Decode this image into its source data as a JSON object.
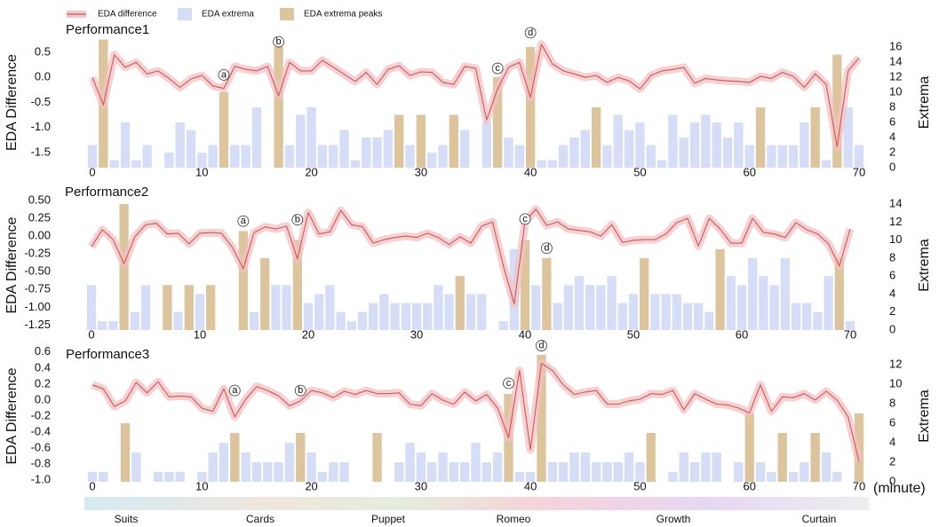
{
  "chart_data": [
    {
      "type": "combo",
      "title": "Performance1",
      "ylabel": "EDA Difference",
      "y2label": "Extrema",
      "x": [
        0,
        1,
        2,
        3,
        4,
        5,
        6,
        7,
        8,
        9,
        10,
        11,
        12,
        13,
        14,
        15,
        16,
        17,
        18,
        19,
        20,
        21,
        22,
        23,
        24,
        25,
        26,
        27,
        28,
        29,
        30,
        31,
        32,
        33,
        34,
        35,
        36,
        37,
        38,
        39,
        40,
        41,
        42,
        43,
        44,
        45,
        46,
        47,
        48,
        49,
        50,
        51,
        52,
        53,
        54,
        55,
        56,
        57,
        58,
        59,
        60,
        61,
        62,
        63,
        64,
        65,
        66,
        67,
        68,
        69,
        70
      ],
      "xlim": [
        0,
        70
      ],
      "xticks": [
        0,
        10,
        20,
        30,
        40,
        50,
        60,
        70
      ],
      "ylim": [
        -1.8,
        0.8
      ],
      "yticks": [
        -1.5,
        {
          "value": -1,
          "label": "-1.0"
        },
        -0.5,
        {
          "value": 0,
          "label": "0.0"
        },
        0.5
      ],
      "y2lim": [
        0,
        17.3
      ],
      "y2ticks": [
        0,
        2,
        4,
        6,
        8,
        10,
        12,
        14,
        16
      ],
      "series": [
        {
          "name": "EDA difference",
          "type": "line",
          "color": "#d9534f",
          "values": [
            0.0,
            -0.55,
            0.45,
            0.2,
            0.3,
            0.07,
            0.13,
            -0.02,
            -0.2,
            -0.03,
            0.04,
            -0.17,
            -0.22,
            0.22,
            0.16,
            0.13,
            0.22,
            -0.37,
            0.3,
            0.13,
            0.13,
            0.34,
            0.2,
            0.06,
            -0.08,
            0.1,
            -0.14,
            0.16,
            0.23,
            0.04,
            0.11,
            0.1,
            -0.1,
            -0.14,
            0.22,
            0.18,
            -0.85,
            -0.23,
            0.2,
            0.3,
            -0.4,
            0.66,
            0.27,
            0.13,
            0.07,
            0.0,
            0.04,
            -0.1,
            0.0,
            -0.07,
            -0.23,
            0.04,
            0.13,
            0.16,
            0.2,
            -0.12,
            -0.02,
            -0.05,
            -0.07,
            -0.08,
            -0.1,
            0.02,
            -0.02,
            0.1,
            0.02,
            -0.2,
            0.07,
            -0.14,
            -1.38,
            0.13,
            0.39
          ]
        },
        {
          "name": "EDA extrema",
          "type": "bar",
          "axis": "y2",
          "color": "#d5ddf7",
          "values": [
            3,
            null,
            1,
            6,
            1,
            3,
            null,
            2,
            6,
            5,
            2,
            3,
            null,
            3,
            3,
            8,
            null,
            null,
            3,
            7,
            8,
            3,
            3,
            5,
            1,
            4,
            4,
            5,
            null,
            3,
            null,
            2,
            3,
            null,
            5,
            null,
            6,
            null,
            4,
            3,
            null,
            1,
            1,
            3,
            4,
            5,
            null,
            3,
            7,
            5,
            6,
            3,
            1,
            7,
            4,
            6,
            7,
            6,
            4,
            6,
            3,
            null,
            3,
            3,
            3,
            6,
            null,
            1,
            null,
            8,
            3
          ]
        },
        {
          "name": "EDA extrema peaks",
          "type": "bar",
          "axis": "y2",
          "color": "#dcc49c",
          "values": [
            null,
            17,
            null,
            null,
            null,
            null,
            null,
            null,
            null,
            null,
            null,
            null,
            10,
            null,
            null,
            null,
            null,
            16,
            null,
            null,
            null,
            null,
            null,
            null,
            null,
            null,
            null,
            null,
            7,
            null,
            7,
            null,
            null,
            7,
            null,
            null,
            null,
            12,
            null,
            null,
            16,
            null,
            null,
            null,
            null,
            null,
            8,
            null,
            null,
            null,
            null,
            null,
            null,
            null,
            null,
            null,
            null,
            null,
            null,
            null,
            null,
            8,
            null,
            null,
            null,
            null,
            8,
            null,
            15,
            null,
            null
          ]
        }
      ],
      "annotations": [
        {
          "text": "a",
          "x": 12,
          "y": 0.05
        },
        {
          "text": "b",
          "x": 17,
          "y": 0.71
        },
        {
          "text": "c",
          "x": 37,
          "y": 0.18
        },
        {
          "text": "d",
          "x": 40,
          "y": 0.89
        }
      ]
    },
    {
      "type": "combo",
      "title": "Performance2",
      "ylabel": "EDA Difference",
      "y2label": "Extrema",
      "x": [
        0,
        1,
        2,
        3,
        4,
        5,
        6,
        7,
        8,
        9,
        10,
        11,
        12,
        13,
        14,
        15,
        16,
        17,
        18,
        19,
        20,
        21,
        22,
        23,
        24,
        25,
        26,
        27,
        28,
        29,
        30,
        31,
        32,
        33,
        34,
        35,
        36,
        37,
        38,
        39,
        40,
        41,
        42,
        43,
        44,
        45,
        46,
        47,
        48,
        49,
        50,
        51,
        52,
        53,
        54,
        55,
        56,
        57,
        58,
        59,
        60,
        61,
        62,
        63,
        64,
        65,
        66,
        67,
        68,
        69,
        70
      ],
      "xlim": [
        0,
        70
      ],
      "xticks": [
        0,
        10,
        20,
        30,
        40,
        50,
        60,
        70
      ],
      "ylim": [
        -1.32,
        0.5
      ],
      "yticks": [
        -1.25,
        {
          "value": -1,
          "label": "-1.00"
        },
        -0.75,
        {
          "value": -0.5,
          "label": "-0.50"
        },
        -0.25,
        {
          "value": 0,
          "label": "0.00"
        },
        0.25,
        {
          "value": 0.5,
          "label": "0.50"
        }
      ],
      "y2lim": [
        0,
        14.4
      ],
      "y2ticks": [
        0,
        2,
        4,
        6,
        8,
        10,
        12,
        14
      ],
      "series": [
        {
          "type": "line",
          "color": "#d9534f",
          "values": [
            -0.15,
            0.09,
            -0.05,
            -0.39,
            -0.01,
            0.16,
            0.18,
            0.03,
            0.04,
            -0.11,
            0.04,
            0.05,
            0.04,
            -0.16,
            -0.46,
            0.05,
            0.13,
            0.1,
            0.14,
            -0.32,
            0.33,
            0.03,
            0.06,
            0.36,
            0.16,
            0.13,
            -0.1,
            -0.05,
            -0.02,
            0.0,
            -0.02,
            0.04,
            -0.02,
            -0.12,
            -0.01,
            -0.1,
            0.14,
            0.2,
            -0.42,
            -0.95,
            0.2,
            0.38,
            0.15,
            0.2,
            0.1,
            0.08,
            0.06,
            0.0,
            0.16,
            -0.09,
            -0.06,
            -0.05,
            -0.05,
            0.03,
            0.19,
            0.25,
            -0.14,
            0.25,
            0.1,
            -0.1,
            -0.1,
            0.25,
            0.05,
            0.03,
            -0.02,
            0.19,
            0.09,
            0.03,
            -0.11,
            -0.42,
            0.1
          ]
        },
        {
          "type": "bar",
          "axis": "y2",
          "color": "#d5ddf7",
          "values": [
            5,
            1,
            1,
            null,
            2,
            5,
            null,
            null,
            2,
            null,
            4,
            null,
            null,
            null,
            null,
            2,
            null,
            5,
            5,
            null,
            3,
            4,
            5,
            2,
            1,
            2,
            3,
            4,
            3,
            3,
            3,
            3,
            5,
            4,
            null,
            4,
            4,
            null,
            1,
            9,
            null,
            5,
            null,
            3,
            5,
            6,
            5,
            5,
            6,
            3,
            4,
            null,
            4,
            4,
            4,
            3,
            3,
            2,
            null,
            6,
            5,
            8,
            6,
            5,
            8,
            3,
            3,
            2,
            6,
            null,
            1
          ]
        },
        {
          "type": "bar",
          "axis": "y2",
          "color": "#dcc49c",
          "values": [
            null,
            null,
            null,
            14,
            null,
            null,
            null,
            5,
            null,
            5,
            null,
            5,
            null,
            null,
            11,
            null,
            8,
            null,
            null,
            10,
            null,
            null,
            null,
            null,
            null,
            null,
            null,
            null,
            null,
            null,
            null,
            null,
            null,
            null,
            6,
            null,
            null,
            null,
            null,
            null,
            10,
            null,
            8,
            null,
            null,
            null,
            null,
            null,
            null,
            null,
            null,
            8,
            null,
            null,
            null,
            null,
            null,
            null,
            9,
            null,
            null,
            null,
            null,
            null,
            null,
            null,
            null,
            null,
            null,
            8,
            null
          ]
        }
      ],
      "annotations": [
        {
          "text": "a",
          "x": 14,
          "y": 0.21
        },
        {
          "text": "b",
          "x": 19,
          "y": 0.23
        },
        {
          "text": "c",
          "x": 40,
          "y": 0.24
        },
        {
          "text": "d",
          "x": 42,
          "y": -0.17
        }
      ]
    },
    {
      "type": "combo",
      "title": "Performance3",
      "ylabel": "EDA Difference",
      "y2label": "Extrema",
      "xlabel": "(minute)",
      "x": [
        0,
        1,
        2,
        3,
        4,
        5,
        6,
        7,
        8,
        9,
        10,
        11,
        12,
        13,
        14,
        15,
        16,
        17,
        18,
        19,
        20,
        21,
        22,
        23,
        24,
        25,
        26,
        27,
        28,
        29,
        30,
        31,
        32,
        33,
        34,
        35,
        36,
        37,
        38,
        39,
        40,
        41,
        42,
        43,
        44,
        45,
        46,
        47,
        48,
        49,
        50,
        51,
        52,
        53,
        54,
        55,
        56,
        57,
        58,
        59,
        60,
        61,
        62,
        63,
        64,
        65,
        66,
        67,
        68,
        69,
        70
      ],
      "xlim": [
        0,
        70
      ],
      "xticks": [
        0,
        10,
        20,
        30,
        40,
        50,
        60,
        70
      ],
      "ylim": [
        -1.02,
        0.62
      ],
      "yticks": [
        {
          "value": -1,
          "label": "-1.0"
        },
        -0.8,
        -0.6,
        -0.4,
        -0.2,
        {
          "value": 0,
          "label": "0.0"
        },
        0.2,
        0.4,
        0.6
      ],
      "y2lim": [
        0,
        13.45
      ],
      "y2ticks": [
        0,
        2,
        4,
        6,
        8,
        10,
        12
      ],
      "series": [
        {
          "type": "line",
          "color": "#d9534f",
          "values": [
            0.19,
            0.14,
            -0.08,
            -0.01,
            0.22,
            0.09,
            0.23,
            0.04,
            0.05,
            0.04,
            -0.1,
            -0.14,
            0.14,
            -0.21,
            0.01,
            0.17,
            0.12,
            0.05,
            -0.07,
            -0.01,
            0.12,
            0.09,
            0.03,
            0.11,
            0.07,
            0.12,
            0.08,
            0.08,
            0.09,
            -0.05,
            -0.07,
            0.08,
            0.0,
            -0.05,
            0.1,
            -0.01,
            0.07,
            -0.1,
            -0.47,
            0.37,
            -0.62,
            0.46,
            0.37,
            0.19,
            0.07,
            0.1,
            0.12,
            -0.05,
            -0.05,
            -0.01,
            0.01,
            0.08,
            0.07,
            0.12,
            -0.12,
            0.08,
            0.01,
            -0.05,
            -0.06,
            -0.1,
            -0.16,
            0.19,
            -0.14,
            0.04,
            0.03,
            0.08,
            0.0,
            0.11,
            0.0,
            -0.21,
            -0.77
          ]
        },
        {
          "type": "bar",
          "axis": "y2",
          "color": "#d5ddf7",
          "values": [
            1,
            1,
            null,
            null,
            3,
            null,
            1,
            1,
            1,
            null,
            1,
            3,
            4,
            null,
            3,
            2,
            2,
            2,
            4,
            null,
            3,
            1,
            2,
            2,
            null,
            null,
            null,
            null,
            2,
            4,
            3,
            2,
            3,
            2,
            2,
            4,
            2,
            3,
            null,
            1,
            1,
            null,
            2,
            2,
            3,
            3,
            2,
            2,
            2,
            3,
            2,
            null,
            null,
            1,
            3,
            2,
            3,
            3,
            null,
            2,
            null,
            2,
            1,
            null,
            1,
            2,
            null,
            3,
            1,
            null,
            null
          ]
        },
        {
          "type": "bar",
          "axis": "y2",
          "color": "#dcc49c",
          "values": [
            null,
            null,
            null,
            6,
            null,
            null,
            null,
            null,
            null,
            null,
            null,
            null,
            null,
            5,
            null,
            null,
            null,
            null,
            null,
            5,
            null,
            null,
            null,
            null,
            null,
            null,
            5,
            null,
            null,
            null,
            null,
            null,
            null,
            null,
            null,
            null,
            null,
            null,
            9,
            null,
            null,
            13,
            null,
            null,
            null,
            null,
            null,
            null,
            null,
            null,
            null,
            5,
            null,
            null,
            null,
            null,
            null,
            null,
            null,
            null,
            7,
            null,
            null,
            5,
            null,
            null,
            5,
            null,
            null,
            null,
            7
          ]
        }
      ],
      "annotations": [
        {
          "text": "a",
          "x": 13,
          "y": 0.12
        },
        {
          "text": "b",
          "x": 19,
          "y": 0.12
        },
        {
          "text": "c",
          "x": 38,
          "y": 0.21
        },
        {
          "text": "d",
          "x": 41,
          "y": 0.68
        }
      ]
    }
  ],
  "scenes": [
    "Suits",
    "Cards",
    "Puppet",
    "Romeo",
    "Growth",
    "Curtain"
  ]
}
